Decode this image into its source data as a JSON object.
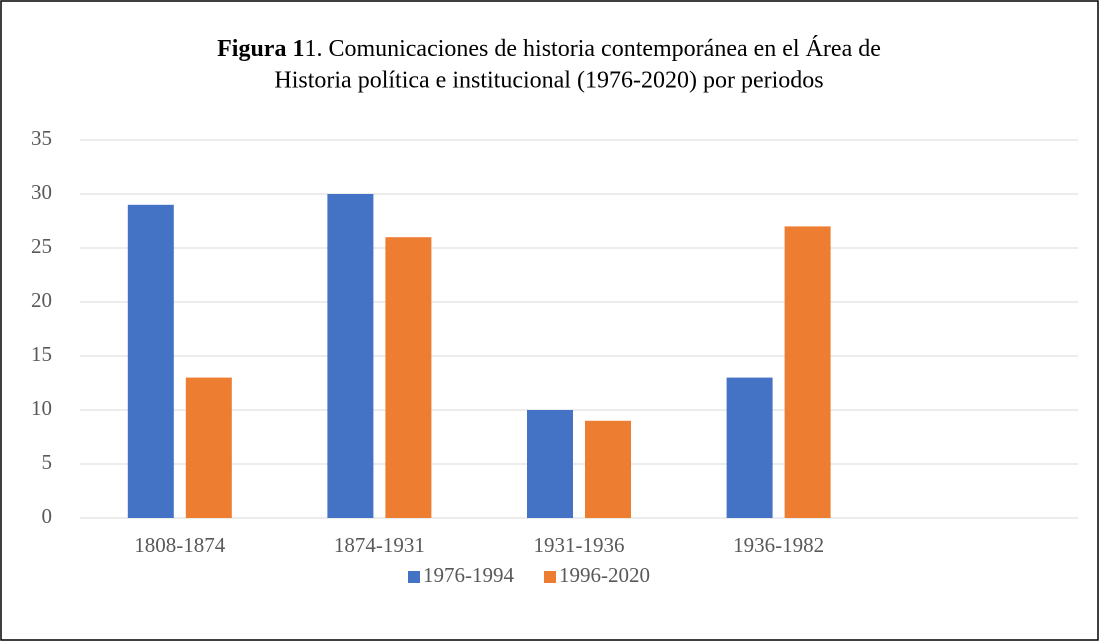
{
  "chart_data": {
    "type": "bar",
    "title_bold": "Figura 1",
    "title": [
      "1. Comunicaciones de historia contemporánea en el Área de",
      "Historia política e institucional (1976-2020) por periodos"
    ],
    "categories": [
      "1808-1874",
      "1874-1931",
      "1931-1936",
      "1936-1982",
      null
    ],
    "series": [
      {
        "name": "1976-1994",
        "color": "#4472c4",
        "values": [
          29,
          30,
          10,
          13,
          null
        ]
      },
      {
        "name": "1996-2020",
        "color": "#ed7d31",
        "values": [
          13,
          26,
          9,
          27,
          null
        ]
      }
    ],
    "ylim": [
      0,
      35
    ],
    "yticks": [
      0,
      5,
      10,
      15,
      20,
      25,
      30,
      35
    ],
    "grid": true,
    "legend": "bottom"
  }
}
